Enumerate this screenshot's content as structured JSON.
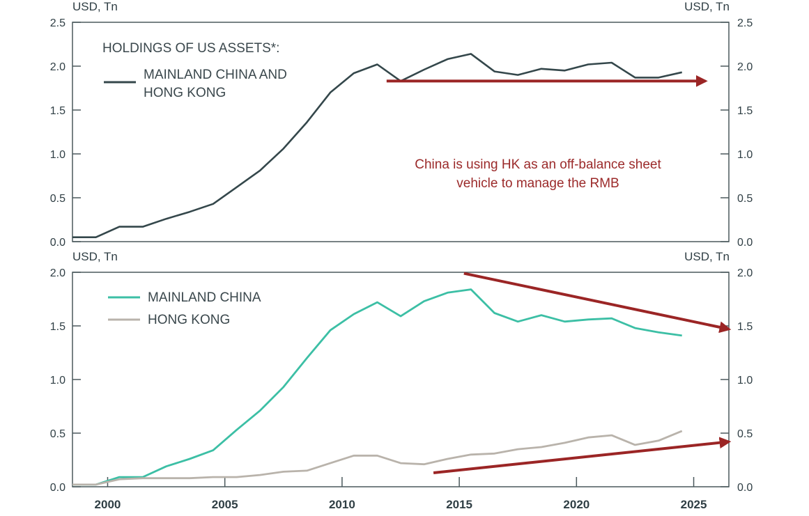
{
  "colors": {
    "total": "#34474b",
    "mainland": "#3cbfa5",
    "hongkong": "#b9b3ab",
    "arrow": "#9b2525",
    "axis": "#4a585c",
    "note": "#9b2a2a"
  },
  "chart_data": [
    {
      "type": "line",
      "unit_left": "USD, Tn",
      "unit_right": "USD, Tn",
      "legend_title": "HOLDINGS OF US ASSETS*:",
      "legend_entry_line1": "MAINLAND CHINA AND",
      "legend_entry_line2": "HONG KONG",
      "annotation_line1": "China is using HK as an off-balance sheet",
      "annotation_line2": "vehicle to manage the RMB",
      "ylim": [
        0,
        2.5
      ],
      "yticks": [
        "0.0",
        "0.5",
        "1.0",
        "1.5",
        "2.0",
        "2.5"
      ],
      "xlim": [
        1998.5,
        2026.5
      ],
      "series": [
        {
          "name": "MAINLAND CHINA AND HONG KONG",
          "x": [
            1998.5,
            1999.5,
            2000.5,
            2001.5,
            2002.5,
            2003.5,
            2004.5,
            2005.5,
            2006.5,
            2007.5,
            2008.5,
            2009.5,
            2010.5,
            2011.5,
            2012.5,
            2013.5,
            2014.5,
            2015.5,
            2016.5,
            2017.5,
            2018.5,
            2019.5,
            2020.5,
            2021.5,
            2022.5,
            2023.5,
            2024.5
          ],
          "values": [
            0.05,
            0.05,
            0.17,
            0.17,
            0.26,
            0.34,
            0.43,
            0.62,
            0.81,
            1.06,
            1.36,
            1.7,
            1.92,
            2.02,
            1.83,
            1.96,
            2.08,
            2.14,
            1.94,
            1.9,
            1.97,
            1.95,
            2.02,
            2.04,
            1.87,
            1.87,
            1.93
          ]
        }
      ],
      "arrows": [
        {
          "from": [
            2011.9,
            1.83
          ],
          "to": [
            2025.5,
            1.83
          ]
        }
      ]
    },
    {
      "type": "line",
      "unit_left": "USD, Tn",
      "unit_right": "USD, Tn",
      "ylim": [
        0,
        2.0
      ],
      "yticks": [
        "0.0",
        "0.5",
        "1.0",
        "1.5",
        "2.0"
      ],
      "xlim": [
        1998.5,
        2026.5
      ],
      "xticks": [
        "2000",
        "2005",
        "2010",
        "2015",
        "2020",
        "2025"
      ],
      "series": [
        {
          "name": "MAINLAND CHINA",
          "x": [
            1998.5,
            1999.5,
            2000.5,
            2001.5,
            2002.5,
            2003.5,
            2004.5,
            2005.5,
            2006.5,
            2007.5,
            2008.5,
            2009.5,
            2010.5,
            2011.5,
            2012.5,
            2013.5,
            2014.5,
            2015.5,
            2016.5,
            2017.5,
            2018.5,
            2019.5,
            2020.5,
            2021.5,
            2022.5,
            2023.5,
            2024.5
          ],
          "values": [
            0.02,
            0.02,
            0.09,
            0.09,
            0.19,
            0.26,
            0.34,
            0.53,
            0.71,
            0.93,
            1.2,
            1.46,
            1.61,
            1.72,
            1.59,
            1.73,
            1.81,
            1.84,
            1.62,
            1.54,
            1.6,
            1.54,
            1.56,
            1.57,
            1.48,
            1.44,
            1.41
          ]
        },
        {
          "name": "HONG KONG",
          "x": [
            1998.5,
            1999.5,
            2000.5,
            2001.5,
            2002.5,
            2003.5,
            2004.5,
            2005.5,
            2006.5,
            2007.5,
            2008.5,
            2009.5,
            2010.5,
            2011.5,
            2012.5,
            2013.5,
            2014.5,
            2015.5,
            2016.5,
            2017.5,
            2018.5,
            2019.5,
            2020.5,
            2021.5,
            2022.5,
            2023.5,
            2024.5
          ],
          "values": [
            0.02,
            0.02,
            0.07,
            0.08,
            0.08,
            0.08,
            0.09,
            0.09,
            0.11,
            0.14,
            0.15,
            0.22,
            0.29,
            0.29,
            0.22,
            0.21,
            0.26,
            0.3,
            0.31,
            0.35,
            0.37,
            0.41,
            0.46,
            0.48,
            0.39,
            0.43,
            0.52
          ]
        }
      ],
      "arrows": [
        {
          "from": [
            2015.2,
            1.99
          ],
          "to": [
            2026.5,
            1.47
          ]
        },
        {
          "from": [
            2013.9,
            0.13
          ],
          "to": [
            2026.5,
            0.42
          ]
        }
      ]
    }
  ]
}
